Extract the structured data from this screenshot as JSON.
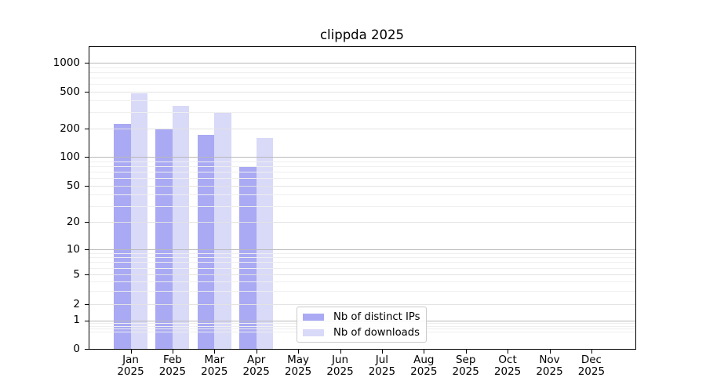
{
  "chart_data": {
    "type": "bar",
    "title": "clippda 2025",
    "x_months": [
      "Jan",
      "Feb",
      "Mar",
      "Apr",
      "May",
      "Jun",
      "Jul",
      "Aug",
      "Sep",
      "Oct",
      "Nov",
      "Dec"
    ],
    "x_year": "2025",
    "series": [
      {
        "name": "Nb of distinct IPs",
        "color": "#a9a9f4",
        "values": [
          225,
          200,
          172,
          78,
          0,
          0,
          0,
          0,
          0,
          0,
          0,
          0
        ]
      },
      {
        "name": "Nb of downloads",
        "color": "#d9d9f8",
        "values": [
          480,
          350,
          293,
          160,
          0,
          0,
          0,
          0,
          0,
          0,
          0,
          0
        ]
      }
    ],
    "y_axis": {
      "scale": "symlog",
      "tick_labels": [
        "0",
        "1",
        "2",
        "5",
        "10",
        "20",
        "50",
        "100",
        "200",
        "500",
        "1000"
      ],
      "tick_values": [
        0,
        1,
        2,
        5,
        10,
        20,
        50,
        100,
        200,
        500,
        1000
      ],
      "major_decades": [
        1,
        10,
        100,
        1000
      ],
      "minor_values": [
        0.6,
        0.7,
        0.8,
        0.9,
        3,
        4,
        6,
        7,
        8,
        9,
        30,
        40,
        60,
        70,
        80,
        90,
        300,
        400,
        600,
        700,
        800,
        900
      ]
    },
    "legend": {
      "entries": [
        "Nb of distinct IPs",
        "Nb of downloads"
      ],
      "position": "lower center inside"
    },
    "grid": true,
    "colors": {
      "grid_major": "#b9b9b9",
      "grid_labeled": "#e3e3e3",
      "grid_minor": "#efefef",
      "spine": "#000000"
    }
  }
}
